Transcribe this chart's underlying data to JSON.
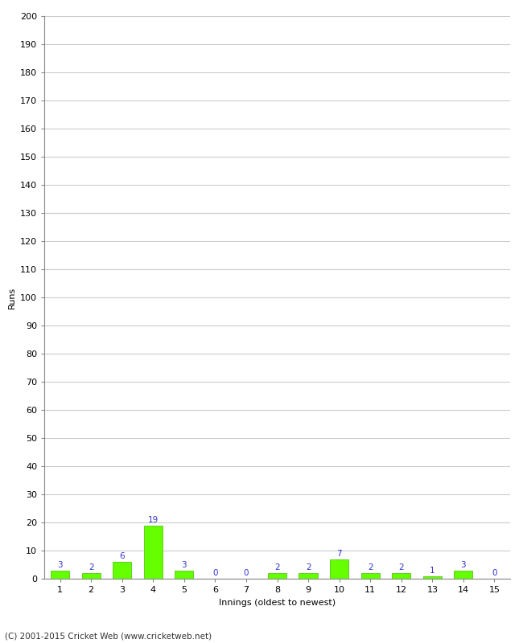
{
  "xlabel": "Innings (oldest to newest)",
  "ylabel": "Runs",
  "categories": [
    1,
    2,
    3,
    4,
    5,
    6,
    7,
    8,
    9,
    10,
    11,
    12,
    13,
    14,
    15
  ],
  "values": [
    3,
    2,
    6,
    19,
    3,
    0,
    0,
    2,
    2,
    7,
    2,
    2,
    1,
    3,
    0
  ],
  "bar_color": "#66ff00",
  "bar_edge_color": "#44bb00",
  "label_color": "#3333cc",
  "ylim": [
    0,
    200
  ],
  "yticks": [
    0,
    10,
    20,
    30,
    40,
    50,
    60,
    70,
    80,
    90,
    100,
    110,
    120,
    130,
    140,
    150,
    160,
    170,
    180,
    190,
    200
  ],
  "grid_color": "#cccccc",
  "background_color": "#ffffff",
  "footer_text": "(C) 2001-2015 Cricket Web (www.cricketweb.net)",
  "label_fontsize": 7.5,
  "axis_tick_fontsize": 8,
  "axis_label_fontsize": 8,
  "footer_fontsize": 7.5
}
